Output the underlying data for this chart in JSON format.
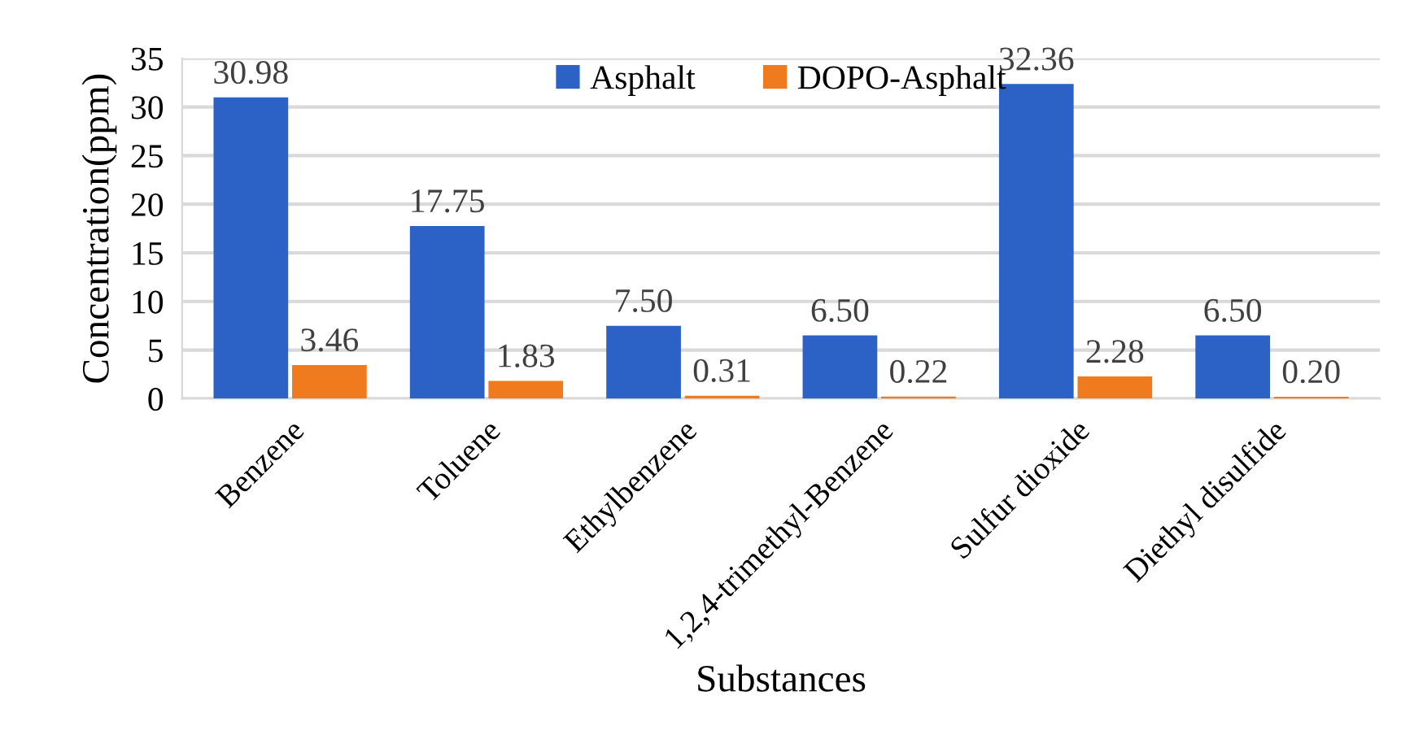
{
  "chart_data": {
    "type": "bar",
    "xlabel": "Substances",
    "ylabel": "Concentration(ppm)",
    "categories": [
      "Benzene",
      "Toluene",
      "Ethylbenzene",
      "1,2,4-trimethyl-Benzene",
      "Sulfur dioxide",
      "Diethyl disulfide"
    ],
    "series": [
      {
        "name": "Asphalt",
        "color": "#2c62c6",
        "values": [
          30.98,
          17.75,
          7.5,
          6.5,
          32.36,
          6.5
        ],
        "value_labels": [
          "30.98",
          "17.75",
          "7.50",
          "6.50",
          "32.36",
          "6.50"
        ]
      },
      {
        "name": "DOPO-Asphalt",
        "color": "#f07b1e",
        "values": [
          3.46,
          1.83,
          0.31,
          0.22,
          2.28,
          0.2
        ],
        "value_labels": [
          "3.46",
          "1.83",
          "0.31",
          "0.22",
          "2.28",
          "0.20"
        ]
      }
    ],
    "ylim": [
      0,
      35
    ],
    "yticks": [
      0,
      5,
      10,
      15,
      20,
      25,
      30,
      35
    ],
    "grid": "y",
    "legend": "top"
  }
}
